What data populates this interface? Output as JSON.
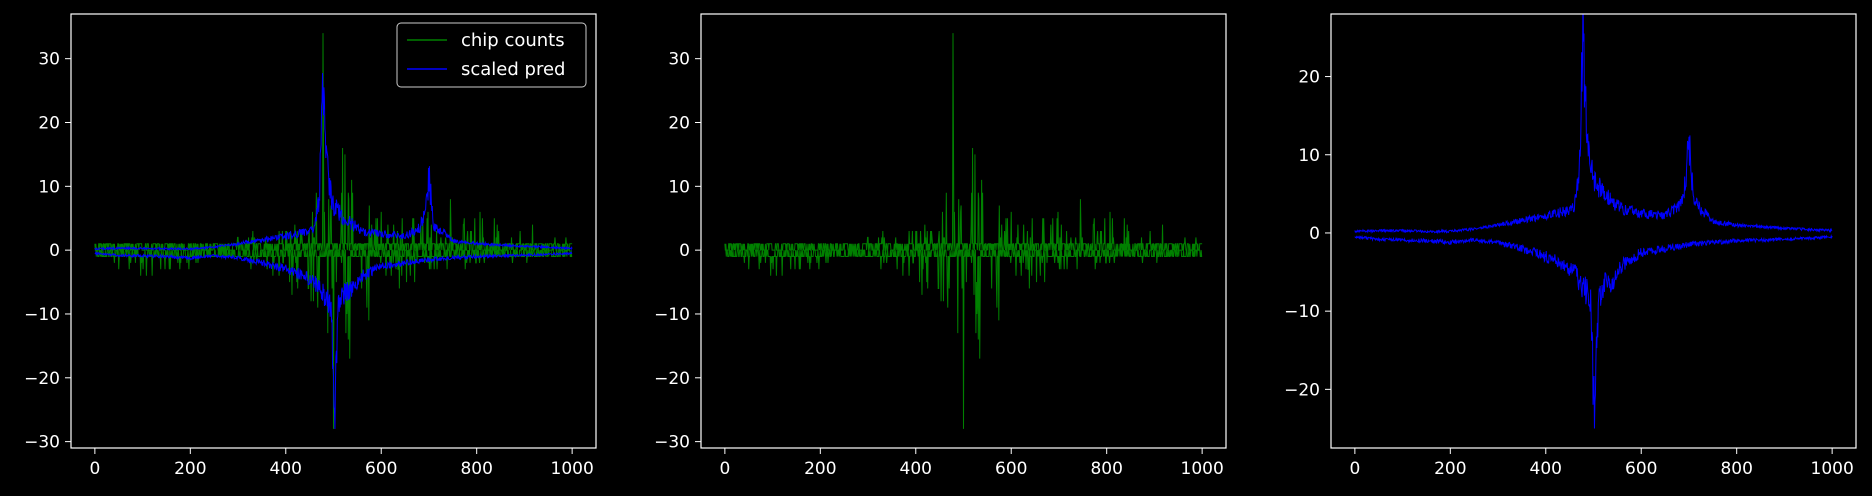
{
  "colors": {
    "background": "#000000",
    "axes": "#ffffff",
    "counts": "#008000",
    "pred": "#0000ff"
  },
  "chart_data": [
    {
      "type": "line",
      "title": "",
      "xlabel": "",
      "ylabel": "",
      "xlim": [
        -50,
        1050
      ],
      "ylim": [
        -31,
        37
      ],
      "xticks": [
        0,
        200,
        400,
        600,
        800,
        1000
      ],
      "yticks": [
        -30,
        -20,
        -10,
        0,
        10,
        20,
        30
      ],
      "legend": {
        "position": "top-right",
        "entries": [
          "chip counts",
          "scaled pred"
        ]
      },
      "series": [
        {
          "name": "chip counts",
          "color": "#008000",
          "description": "two interleaved traces: positive counts and negative counts per chip index",
          "peaks": {
            "max": {
              "x": 478,
              "y": 34
            },
            "min": {
              "x": 500,
              "y": -28
            }
          },
          "envelope_x": [
            0,
            100,
            200,
            250,
            300,
            350,
            400,
            450,
            470,
            480,
            490,
            500,
            520,
            550,
            600,
            650,
            700,
            750,
            800,
            900,
            1000
          ],
          "envelope_upper": [
            1,
            1,
            1,
            0.5,
            2,
            3,
            4,
            5,
            19,
            34,
            15,
            10,
            16,
            11,
            6,
            5,
            7,
            8,
            6,
            5,
            2
          ],
          "envelope_lower": [
            -1,
            -5,
            -3,
            -1,
            -2,
            -4,
            -6,
            -8,
            -14,
            -16,
            -20,
            -28,
            -22,
            -14,
            -8,
            -6,
            -4,
            -4,
            -3,
            -2,
            -1
          ]
        },
        {
          "name": "scaled pred",
          "color": "#0000ff",
          "description": "two interleaved traces: positive prediction and negative prediction per chip index",
          "peaks": {
            "max": {
              "x": 480,
              "y": 25.5
            },
            "min": {
              "x": 502,
              "y": -25
            }
          },
          "upper_x": [
            0,
            50,
            100,
            150,
            200,
            250,
            300,
            350,
            400,
            420,
            440,
            460,
            470,
            478,
            482,
            490,
            500,
            520,
            540,
            560,
            600,
            650,
            680,
            690,
            700,
            710,
            750,
            800,
            900,
            1000
          ],
          "upper_y": [
            0.2,
            0.3,
            0.3,
            0.2,
            0.2,
            0.5,
            1.0,
            1.6,
            2.2,
            2.5,
            2.8,
            3.2,
            8,
            25.5,
            18,
            10,
            7,
            5,
            4,
            3,
            2.5,
            2.2,
            3.5,
            5.5,
            11.5,
            4,
            1.5,
            1.0,
            0.6,
            0.3
          ],
          "lower_x": [
            0,
            50,
            100,
            150,
            200,
            250,
            300,
            350,
            400,
            420,
            440,
            460,
            470,
            480,
            490,
            495,
            502,
            510,
            520,
            540,
            560,
            600,
            650,
            700,
            750,
            800,
            900,
            1000
          ],
          "lower_y": [
            -0.5,
            -0.8,
            -0.9,
            -1.0,
            -1.2,
            -0.9,
            -1.2,
            -2,
            -3,
            -3.5,
            -4,
            -5,
            -6,
            -7,
            -8,
            -9,
            -25,
            -9,
            -7,
            -6,
            -4,
            -2.5,
            -2,
            -1.5,
            -1.2,
            -1,
            -0.8,
            -0.5
          ]
        }
      ]
    },
    {
      "type": "line",
      "title": "",
      "xlabel": "",
      "ylabel": "",
      "xlim": [
        -50,
        1050
      ],
      "ylim": [
        -31,
        37
      ],
      "xticks": [
        0,
        200,
        400,
        600,
        800,
        1000
      ],
      "yticks": [
        -30,
        -20,
        -10,
        0,
        10,
        20,
        30
      ],
      "series": [
        {
          "color": "#008000",
          "description": "chip counts only",
          "peaks": {
            "max": {
              "x": 478,
              "y": 34
            },
            "min": {
              "x": 500,
              "y": -28
            }
          },
          "envelope_x": [
            0,
            100,
            200,
            250,
            300,
            350,
            400,
            450,
            470,
            480,
            490,
            500,
            520,
            550,
            600,
            650,
            700,
            750,
            800,
            900,
            1000
          ],
          "envelope_upper": [
            1,
            1,
            1,
            0.5,
            2,
            3,
            4,
            5,
            19,
            34,
            15,
            10,
            16,
            11,
            6,
            5,
            7,
            8,
            6,
            5,
            2
          ],
          "envelope_lower": [
            -1,
            -5,
            -3,
            -1,
            -2,
            -4,
            -6,
            -8,
            -14,
            -16,
            -20,
            -28,
            -22,
            -14,
            -8,
            -6,
            -4,
            -4,
            -3,
            -2,
            -1
          ]
        }
      ]
    },
    {
      "type": "line",
      "title": "",
      "xlabel": "",
      "ylabel": "",
      "xlim": [
        -50,
        1050
      ],
      "ylim": [
        -27.5,
        28
      ],
      "xticks": [
        0,
        200,
        400,
        600,
        800,
        1000
      ],
      "yticks": [
        -20,
        -10,
        0,
        10,
        20
      ],
      "series": [
        {
          "color": "#0000ff",
          "description": "scaled prediction only",
          "peaks": {
            "max": {
              "x": 480,
              "y": 25.5
            },
            "min": {
              "x": 502,
              "y": -25
            }
          },
          "upper_x": [
            0,
            50,
            100,
            150,
            200,
            250,
            300,
            350,
            400,
            420,
            440,
            460,
            470,
            478,
            482,
            490,
            500,
            520,
            540,
            560,
            600,
            650,
            680,
            690,
            700,
            710,
            750,
            800,
            900,
            1000
          ],
          "upper_y": [
            0.2,
            0.3,
            0.3,
            0.2,
            0.2,
            0.5,
            1.0,
            1.6,
            2.2,
            2.5,
            2.8,
            3.2,
            8,
            25.5,
            18,
            10,
            7,
            5,
            4,
            3,
            2.5,
            2.2,
            3.5,
            5.5,
            11.5,
            4,
            1.5,
            1.0,
            0.6,
            0.3
          ],
          "lower_x": [
            0,
            50,
            100,
            150,
            200,
            250,
            300,
            350,
            400,
            420,
            440,
            460,
            470,
            480,
            490,
            495,
            502,
            510,
            520,
            540,
            560,
            600,
            650,
            700,
            750,
            800,
            900,
            1000
          ],
          "lower_y": [
            -0.5,
            -0.8,
            -0.9,
            -1.0,
            -1.2,
            -0.9,
            -1.2,
            -2,
            -3,
            -3.5,
            -4,
            -5,
            -6,
            -7,
            -8,
            -9,
            -25,
            -9,
            -7,
            -6,
            -4,
            -2.5,
            -2,
            -1.5,
            -1.2,
            -1,
            -0.8,
            -0.5
          ]
        }
      ]
    }
  ]
}
